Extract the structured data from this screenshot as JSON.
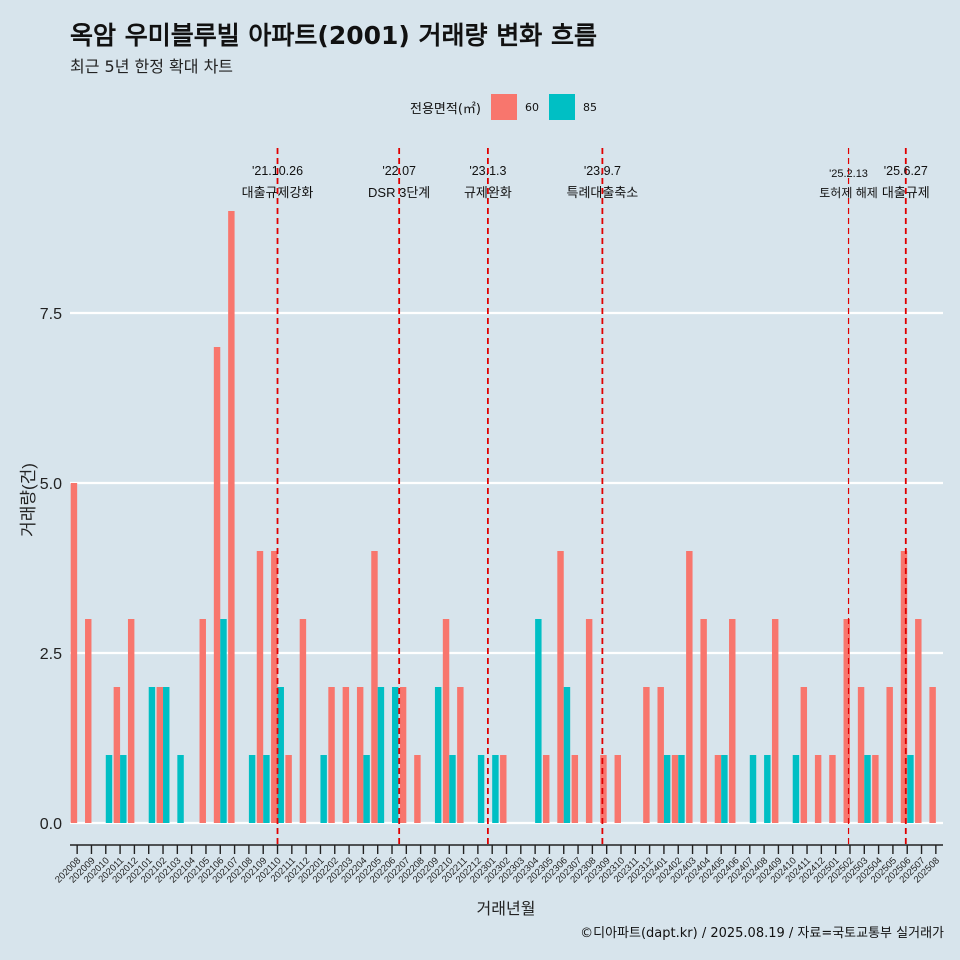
{
  "title": "옥암 우미블루빌 아파트(2001) 거래량 변화 흐름",
  "subtitle": "최근 5년 한정 확대 차트",
  "legend": {
    "title": "전용면적(㎡)",
    "items": [
      {
        "label": "60",
        "color": "#f8766d"
      },
      {
        "label": "85",
        "color": "#00bfc4"
      }
    ]
  },
  "caption": "©디아파트(dapt.kr) / 2025.08.19 / 자료=국토교통부 실거래가",
  "chart_data": {
    "type": "bar",
    "xlabel": "거래년월",
    "ylabel": "거래량(건)",
    "ylim": [
      0,
      9.5
    ],
    "yticks": [
      0.0,
      2.5,
      5.0,
      7.5
    ],
    "ytick_labels": [
      "0.0",
      "2.5",
      "5.0",
      "7.5"
    ],
    "categories": [
      "202008",
      "202009",
      "202010",
      "202011",
      "202012",
      "202101",
      "202102",
      "202103",
      "202104",
      "202105",
      "202106",
      "202107",
      "202108",
      "202109",
      "202110",
      "202111",
      "202112",
      "202201",
      "202202",
      "202203",
      "202204",
      "202205",
      "202206",
      "202207",
      "202208",
      "202209",
      "202210",
      "202211",
      "202212",
      "202301",
      "202302",
      "202303",
      "202304",
      "202305",
      "202306",
      "202307",
      "202308",
      "202309",
      "202310",
      "202311",
      "202312",
      "202401",
      "202402",
      "202403",
      "202404",
      "202405",
      "202406",
      "202407",
      "202408",
      "202409",
      "202410",
      "202411",
      "202412",
      "202501",
      "202502",
      "202503",
      "202504",
      "202505",
      "202506",
      "202507",
      "202508"
    ],
    "series": [
      {
        "name": "60",
        "color": "#f8766d",
        "values": [
          5,
          3,
          0,
          2,
          3,
          0,
          2,
          0,
          0,
          3,
          7,
          9,
          0,
          4,
          4,
          1,
          3,
          0,
          2,
          2,
          2,
          4,
          0,
          2,
          1,
          0,
          3,
          2,
          0,
          0,
          1,
          0,
          0,
          1,
          4,
          1,
          3,
          1,
          1,
          0,
          2,
          2,
          1,
          4,
          3,
          1,
          3,
          0,
          0,
          3,
          0,
          2,
          1,
          1,
          3,
          2,
          1,
          2,
          4,
          3,
          2
        ]
      },
      {
        "name": "85",
        "color": "#00bfc4",
        "values": [
          0,
          0,
          1,
          1,
          0,
          2,
          2,
          1,
          0,
          0,
          3,
          0,
          1,
          1,
          2,
          0,
          0,
          1,
          0,
          0,
          1,
          2,
          2,
          0,
          0,
          2,
          1,
          0,
          1,
          1,
          0,
          0,
          3,
          0,
          2,
          0,
          0,
          0,
          0,
          0,
          0,
          1,
          1,
          0,
          0,
          1,
          0,
          1,
          1,
          0,
          1,
          0,
          0,
          0,
          0,
          1,
          0,
          0,
          1,
          0,
          0
        ]
      }
    ],
    "annotations": [
      {
        "date": "'21.10.26",
        "label": "대출규제강화",
        "index": 14.5
      },
      {
        "date": "'22.07",
        "label": "DSR 3단계",
        "index": 23
      },
      {
        "date": "'23.1.3",
        "label": "규제완화",
        "index": 29.2
      },
      {
        "date": "'23.9.7",
        "label": "특례대출축소",
        "index": 37.2
      },
      {
        "date": "'25.2.13",
        "label": "토허제 해제",
        "index": 54.4
      },
      {
        "date": "'25.6.27",
        "label": "대출규제",
        "index": 58.4
      }
    ]
  }
}
